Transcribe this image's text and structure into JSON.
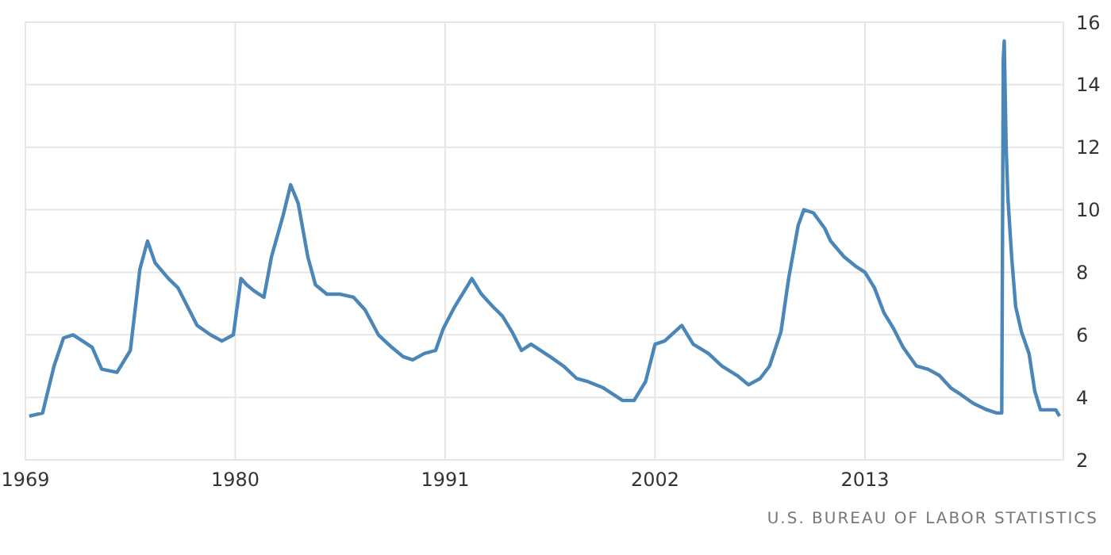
{
  "chart_data": {
    "type": "line",
    "x": [
      1969.2,
      1969.9,
      1970.5,
      1971.0,
      1971.5,
      1972.0,
      1972.5,
      1973.0,
      1973.8,
      1974.5,
      1975.0,
      1975.4,
      1975.8,
      1976.5,
      1977.0,
      1977.5,
      1978.0,
      1978.7,
      1979.3,
      1979.9,
      1980.3,
      1980.6,
      1981.0,
      1981.5,
      1981.9,
      1982.5,
      1982.9,
      1983.3,
      1983.8,
      1984.2,
      1984.8,
      1985.5,
      1986.2,
      1986.8,
      1987.5,
      1988.2,
      1988.8,
      1989.3,
      1989.9,
      1990.5,
      1990.9,
      1991.5,
      1992.4,
      1992.9,
      1993.5,
      1994.0,
      1994.5,
      1995.0,
      1995.5,
      1996.5,
      1997.2,
      1997.9,
      1998.5,
      1999.3,
      2000.3,
      2000.9,
      2001.5,
      2002.0,
      2002.5,
      2003.4,
      2004.0,
      2004.8,
      2005.5,
      2006.3,
      2006.9,
      2007.5,
      2008.0,
      2008.6,
      2009.0,
      2009.5,
      2009.8,
      2010.3,
      2010.9,
      2011.2,
      2011.9,
      2012.5,
      2013.0,
      2013.5,
      2014.0,
      2014.5,
      2015.0,
      2015.7,
      2016.3,
      2016.9,
      2017.5,
      2018.0,
      2018.7,
      2019.4,
      2019.9,
      2020.17,
      2020.25,
      2020.3,
      2020.4,
      2020.5,
      2020.7,
      2020.9,
      2021.2,
      2021.6,
      2021.9,
      2022.2,
      2022.6,
      2023.0,
      2023.2
    ],
    "series": [
      {
        "color": "#4a86b8",
        "values": [
          3.4,
          3.5,
          5.0,
          5.9,
          6.0,
          5.8,
          5.6,
          4.9,
          4.8,
          5.5,
          8.1,
          9.0,
          8.3,
          7.8,
          7.5,
          6.9,
          6.3,
          6.0,
          5.8,
          6.0,
          7.8,
          7.6,
          7.4,
          7.2,
          8.5,
          9.8,
          10.8,
          10.2,
          8.5,
          7.6,
          7.3,
          7.3,
          7.2,
          6.8,
          6.0,
          5.6,
          5.3,
          5.2,
          5.4,
          5.5,
          6.2,
          6.9,
          7.8,
          7.3,
          6.9,
          6.6,
          6.1,
          5.5,
          5.7,
          5.3,
          5.0,
          4.6,
          4.5,
          4.3,
          3.9,
          3.9,
          4.5,
          5.7,
          5.8,
          6.3,
          5.7,
          5.4,
          5.0,
          4.7,
          4.4,
          4.6,
          5.0,
          6.1,
          7.8,
          9.5,
          10.0,
          9.9,
          9.4,
          9.0,
          8.5,
          8.2,
          8.0,
          7.5,
          6.7,
          6.2,
          5.6,
          5.0,
          4.9,
          4.7,
          4.3,
          4.1,
          3.8,
          3.6,
          3.5,
          3.5,
          14.8,
          15.4,
          12.0,
          10.3,
          8.4,
          6.9,
          6.1,
          5.4,
          4.2,
          3.6,
          3.6,
          3.6,
          3.4
        ]
      }
    ],
    "xlim": [
      1969,
      2023.4
    ],
    "xticks": [
      1969,
      1980,
      1991,
      2002,
      2013
    ],
    "ylim": [
      2,
      16
    ],
    "yticks": [
      2,
      4,
      6,
      8,
      10,
      12,
      14,
      16
    ],
    "grid": true,
    "annotations": [
      "U.S. BUREAU OF LABOR STATISTICS"
    ]
  }
}
